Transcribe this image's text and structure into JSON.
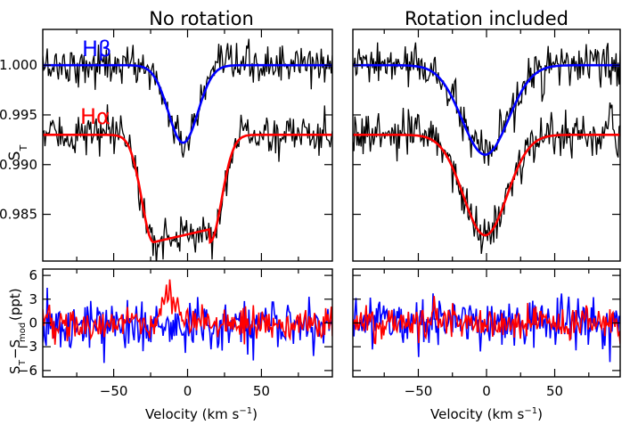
{
  "chart_data": [
    {
      "type": "line",
      "title": "No rotation",
      "ylabel": "S_T",
      "xlim": [
        -98,
        98
      ],
      "ylim": [
        0.9803,
        1.0036
      ],
      "yticks": [
        0.985,
        0.99,
        0.995,
        1.0
      ],
      "ytick_labels": [
        "0.985",
        "0.990",
        "0.995",
        "1.000"
      ],
      "annotations": [
        {
          "text": "Hβ",
          "color": "#0000ff"
        },
        {
          "text": "Hα",
          "color": "#ff0000"
        }
      ],
      "series": [
        {
          "name": "Hβ",
          "role": "model",
          "color": "#0000ff",
          "baseline": 1.0,
          "depth": 0.0078,
          "center": -3,
          "sigma": 10,
          "trough_halfwidth": 0
        },
        {
          "name": "Hα",
          "role": "model",
          "color": "#ff0000",
          "baseline": 0.993,
          "depth": 0.0108,
          "center": -4,
          "sigma": 8,
          "trough_halfwidth": 19
        },
        {
          "name": "Hβ observed",
          "role": "data",
          "color": "#000000",
          "noise": 0.0018
        },
        {
          "name": "Hα observed",
          "role": "data",
          "color": "#000000",
          "noise": 0.0018
        }
      ]
    },
    {
      "type": "line",
      "title": "Rotation included",
      "xlim": [
        -98,
        98
      ],
      "ylim": [
        0.9803,
        1.0036
      ],
      "yticks": [
        0.985,
        0.99,
        0.995,
        1.0
      ],
      "series": [
        {
          "name": "Hβ",
          "role": "model",
          "color": "#0000ff",
          "baseline": 1.0,
          "depth": 0.009,
          "center": -1,
          "sigma": 17,
          "trough_halfwidth": 0
        },
        {
          "name": "Hα",
          "role": "model",
          "color": "#ff0000",
          "baseline": 0.993,
          "depth": 0.0101,
          "center": -1,
          "sigma": 16,
          "trough_halfwidth": 0
        },
        {
          "name": "Hβ observed",
          "role": "data",
          "color": "#000000",
          "noise": 0.0018
        },
        {
          "name": "Hα observed",
          "role": "data",
          "color": "#000000",
          "noise": 0.0018
        }
      ]
    },
    {
      "type": "line",
      "xlabel": "Velocity (km s⁻¹)",
      "ylabel": "S_T−S_mod (ppt)",
      "xlim": [
        -98,
        98
      ],
      "ylim": [
        -6.8,
        6.8
      ],
      "xticks": [
        -50,
        0,
        50
      ],
      "xtick_labels": [
        "−50",
        "0",
        "50"
      ],
      "yticks": [
        -6,
        -3,
        0,
        3,
        6
      ],
      "ytick_labels": [
        "−6",
        "−3",
        "0",
        "3",
        "6"
      ],
      "series": [
        {
          "name": "Hβ residual",
          "color": "#0000ff",
          "noise": 2.2
        },
        {
          "name": "Hα residual",
          "color": "#ff0000",
          "noise": 1.4,
          "bump": {
            "center": -12,
            "width": 5,
            "height": 3.2
          }
        }
      ]
    },
    {
      "type": "line",
      "xlabel": "Velocity (km s⁻¹)",
      "xlim": [
        -98,
        98
      ],
      "ylim": [
        -6.8,
        6.8
      ],
      "xticks": [
        -50,
        0,
        50
      ],
      "xtick_labels": [
        "−50",
        "0",
        "50"
      ],
      "yticks": [
        -6,
        -3,
        0,
        3,
        6
      ],
      "series": [
        {
          "name": "Hβ residual",
          "color": "#0000ff",
          "noise": 2.0
        },
        {
          "name": "Hα residual",
          "color": "#ff0000",
          "noise": 1.4
        }
      ]
    }
  ]
}
